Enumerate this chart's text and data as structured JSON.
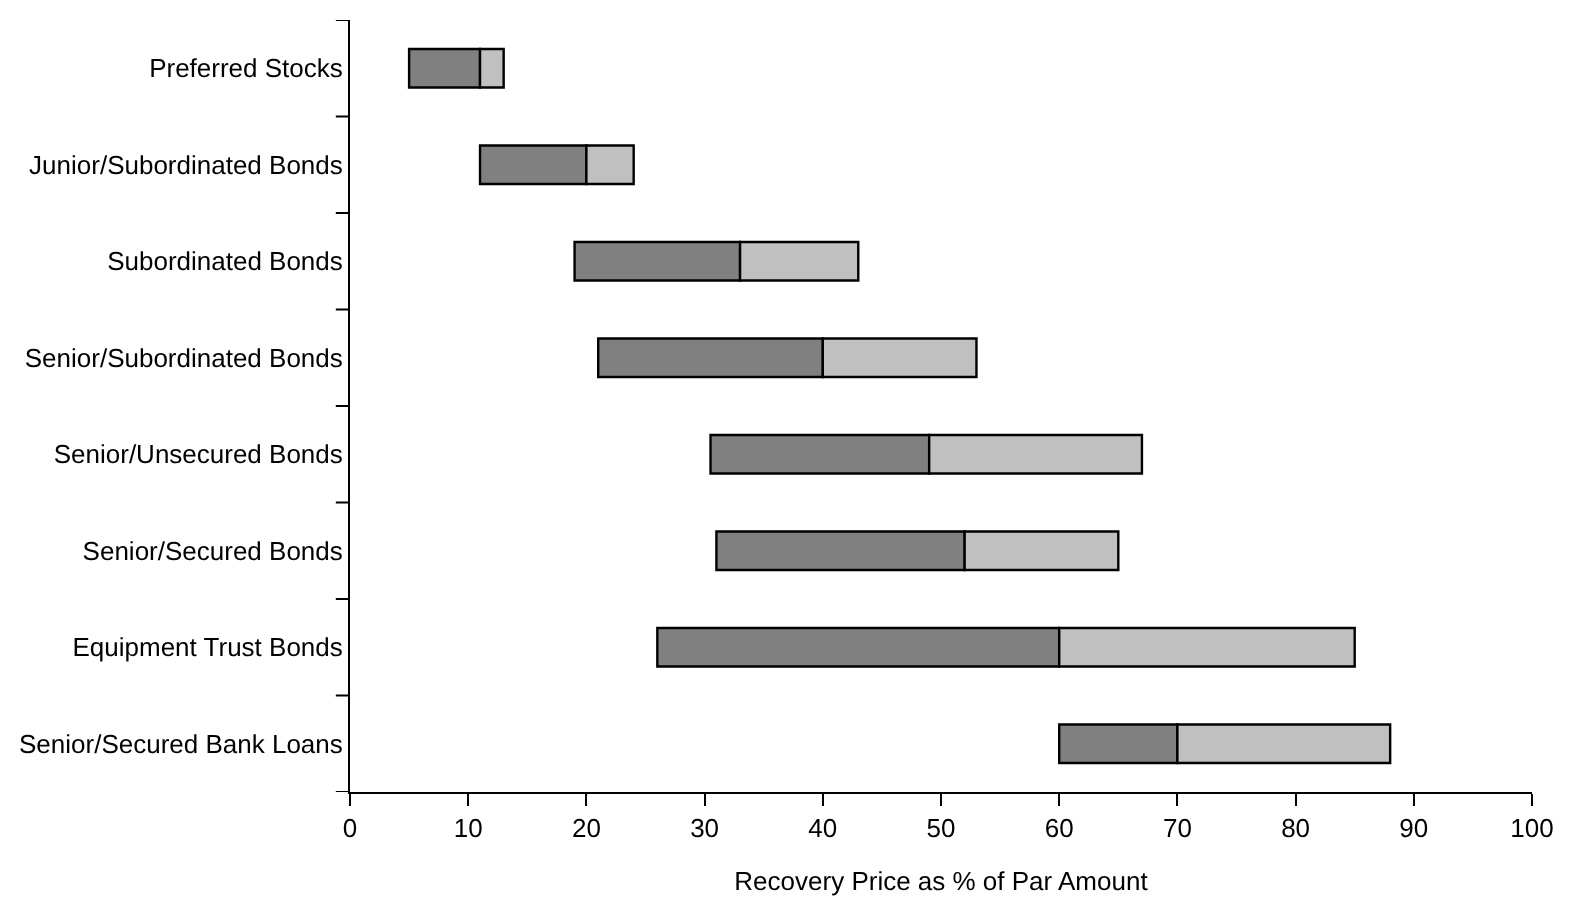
{
  "chart_data": {
    "type": "bar",
    "orientation": "horizontal",
    "categories": [
      "Preferred Stocks",
      "Junior/Subordinated Bonds",
      "Subordinated Bonds",
      "Senior/Subordinated Bonds",
      "Senior/Unsecured Bonds",
      "Senior/Secured Bonds",
      "Equipment Trust Bonds",
      "Senior/Secured Bank Loans"
    ],
    "series": [
      {
        "color": "#808080",
        "base": [
          5,
          11,
          19,
          21,
          30.5,
          31,
          26,
          60
        ],
        "values": [
          6,
          9,
          14,
          19,
          18.5,
          21,
          34,
          10
        ]
      },
      {
        "color": "#c0c0c0",
        "base": [
          11,
          20,
          33,
          40,
          49,
          52,
          60,
          70
        ],
        "values": [
          2,
          4,
          10,
          13,
          18,
          13,
          25,
          18
        ]
      }
    ],
    "xlabel": "Recovery Price as % of Par Amount",
    "xlim": [
      0,
      100
    ],
    "xticks": [
      0,
      10,
      20,
      30,
      40,
      50,
      60,
      70,
      80,
      90,
      100
    ]
  }
}
